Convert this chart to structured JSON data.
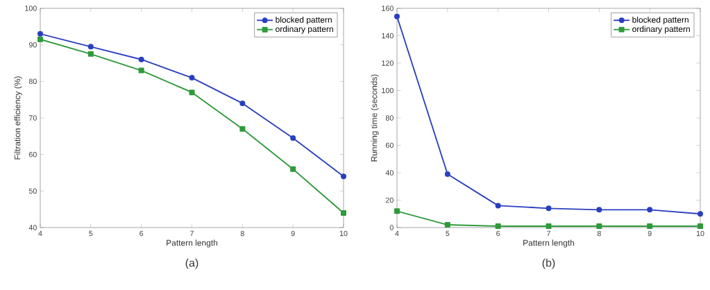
{
  "chart_data": [
    {
      "type": "line",
      "xlabel": "Pattern length",
      "ylabel": "Filtration efficiency (%)",
      "annotations": [
        "(a)"
      ],
      "x": [
        4,
        5,
        6,
        7,
        8,
        9,
        10
      ],
      "xlim": [
        4,
        10
      ],
      "ylim": [
        40,
        100
      ],
      "xticks": [
        4,
        5,
        6,
        7,
        8,
        9,
        10
      ],
      "yticks": [
        40,
        50,
        60,
        70,
        80,
        90,
        100
      ],
      "legend": "top right",
      "series": [
        {
          "name": "blocked pattern",
          "color": "#2a3fbf",
          "marker": "circle",
          "values": [
            93,
            89.5,
            86,
            81,
            74,
            64.5,
            54
          ]
        },
        {
          "name": "ordinary pattern",
          "color": "#2e9a3a",
          "marker": "square",
          "values": [
            91.5,
            87.5,
            83,
            77,
            67,
            56,
            44
          ]
        }
      ]
    },
    {
      "type": "line",
      "xlabel": "Pattern length",
      "ylabel": "Running time (seconds)",
      "annotations": [
        "(b)"
      ],
      "x": [
        4,
        5,
        6,
        7,
        8,
        9,
        10
      ],
      "xlim": [
        4,
        10
      ],
      "ylim": [
        0,
        160
      ],
      "xticks": [
        4,
        5,
        6,
        7,
        8,
        9,
        10
      ],
      "yticks": [
        0,
        20,
        40,
        60,
        80,
        100,
        120,
        140,
        160
      ],
      "legend": "top right",
      "series": [
        {
          "name": "blocked pattern",
          "color": "#2a3fbf",
          "marker": "circle",
          "values": [
            154,
            39,
            16,
            14,
            13,
            13,
            10
          ]
        },
        {
          "name": "ordinary pattern",
          "color": "#2e9a3a",
          "marker": "square",
          "values": [
            12,
            2,
            1,
            1,
            1,
            1,
            1
          ]
        }
      ]
    }
  ]
}
